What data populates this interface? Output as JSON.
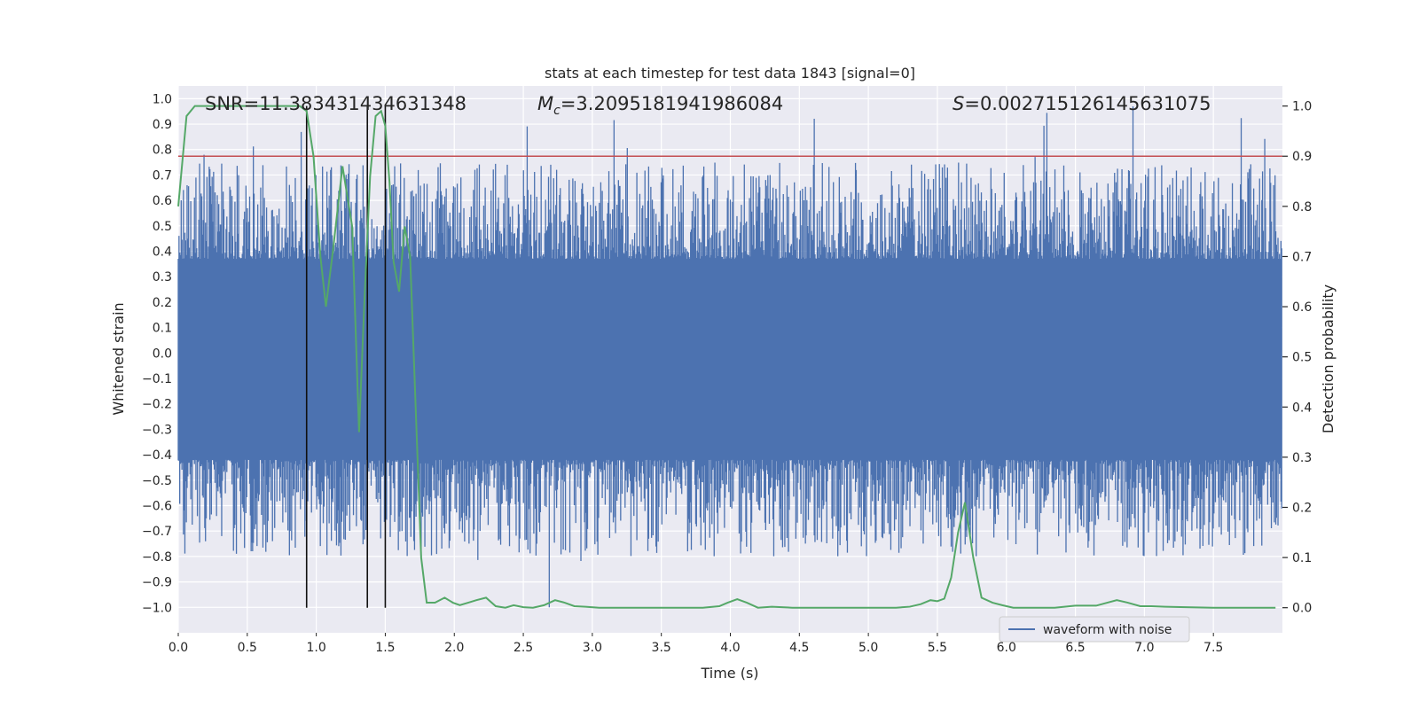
{
  "chart_data": {
    "type": "line",
    "title": "stats at each timestep for test data 1843 [signal=0]",
    "xlabel": "Time (s)",
    "ylabel_left": "Whitened strain",
    "ylabel_right": "Detection probability",
    "xlim": [
      0.0,
      8.0
    ],
    "ylim_left": [
      -1.1,
      1.05
    ],
    "ylim_right": [
      -0.05,
      1.04
    ],
    "x_ticks": [
      0.0,
      0.5,
      1.0,
      1.5,
      2.0,
      2.5,
      3.0,
      3.5,
      4.0,
      4.5,
      5.0,
      5.5,
      6.0,
      6.5,
      7.0,
      7.5
    ],
    "x_tick_labels": [
      "0.0",
      "0.5",
      "1.0",
      "1.5",
      "2.0",
      "2.5",
      "3.0",
      "3.5",
      "4.0",
      "4.5",
      "5.0",
      "5.5",
      "6.0",
      "6.5",
      "7.0",
      "7.5"
    ],
    "y_left_ticks": [
      1.0,
      0.9,
      0.8,
      0.7,
      0.6,
      0.5,
      0.4,
      0.3,
      0.2,
      0.1,
      0.0,
      -0.1,
      -0.2,
      -0.3,
      -0.4,
      -0.5,
      -0.6,
      -0.7,
      -0.8,
      -0.9,
      -1.0
    ],
    "y_left_tick_labels": [
      "1.0",
      "0.9",
      "0.8",
      "0.7",
      "0.6",
      "0.5",
      "0.4",
      "0.3",
      "0.2",
      "0.1",
      "0.0",
      "−0.1",
      "−0.2",
      "−0.3",
      "−0.4",
      "−0.5",
      "−0.6",
      "−0.7",
      "−0.8",
      "−0.9",
      "−1.0"
    ],
    "y_right_ticks": [
      1.0,
      0.9,
      0.8,
      0.7,
      0.6,
      0.5,
      0.4,
      0.3,
      0.2,
      0.1,
      0.0
    ],
    "y_right_tick_labels": [
      "1.0",
      "0.9",
      "0.8",
      "0.7",
      "0.6",
      "0.5",
      "0.4",
      "0.3",
      "0.2",
      "0.1",
      "0.0"
    ],
    "annotations": {
      "snr": "SNR=11.383431434631348",
      "mc_prefix": "M",
      "mc_sub": "c",
      "mc_value": "=3.2095181941986084",
      "s_prefix": "S",
      "s_value": "=0.002715126145631075"
    },
    "threshold_line": {
      "axis": "right",
      "value": 0.9,
      "color": "#c44e52"
    },
    "vertical_markers": [
      0.93,
      1.37,
      1.5
    ],
    "legend": {
      "label": "waveform with noise",
      "position": "lower right"
    },
    "series": [
      {
        "name": "waveform with noise",
        "axis": "left",
        "color": "#4c72b0",
        "kind": "noisy_strain",
        "band": [
          -0.42,
          0.37
        ],
        "extreme_range": [
          -1.0,
          0.97
        ]
      },
      {
        "name": "detection probability",
        "axis": "right",
        "color": "#55a868",
        "x": [
          0.0,
          0.06,
          0.12,
          0.2,
          0.3,
          0.45,
          0.6,
          0.75,
          0.88,
          0.93,
          0.98,
          1.03,
          1.07,
          1.12,
          1.19,
          1.26,
          1.31,
          1.35,
          1.39,
          1.43,
          1.47,
          1.5,
          1.53,
          1.56,
          1.6,
          1.64,
          1.68,
          1.72,
          1.76,
          1.8,
          1.86,
          1.93,
          1.99,
          2.04,
          2.1,
          2.16,
          2.23,
          2.3,
          2.37,
          2.43,
          2.5,
          2.57,
          2.65,
          2.73,
          2.8,
          2.87,
          2.95,
          3.05,
          3.2,
          3.5,
          3.8,
          3.92,
          3.98,
          4.05,
          4.12,
          4.2,
          4.3,
          4.45,
          4.6,
          4.8,
          5.0,
          5.2,
          5.3,
          5.38,
          5.45,
          5.5,
          5.55,
          5.6,
          5.65,
          5.7,
          5.76,
          5.82,
          5.9,
          5.97,
          6.05,
          6.2,
          6.35,
          6.5,
          6.65,
          6.8,
          6.88,
          6.97,
          7.05,
          7.15,
          7.3,
          7.5,
          7.7,
          7.8,
          7.95
        ],
        "values": [
          0.8,
          0.98,
          1.0,
          1.0,
          1.0,
          1.0,
          1.0,
          1.0,
          1.0,
          0.99,
          0.9,
          0.7,
          0.6,
          0.71,
          0.88,
          0.76,
          0.35,
          0.62,
          0.86,
          0.98,
          0.99,
          0.96,
          0.85,
          0.69,
          0.63,
          0.76,
          0.7,
          0.4,
          0.1,
          0.01,
          0.01,
          0.02,
          0.01,
          0.005,
          0.01,
          0.015,
          0.02,
          0.003,
          0.0,
          0.005,
          0.001,
          0.0,
          0.005,
          0.015,
          0.01,
          0.003,
          0.002,
          0.0,
          0.0,
          0.0,
          0.0,
          0.003,
          0.01,
          0.017,
          0.01,
          0.0,
          0.002,
          0.0,
          0.0,
          0.0,
          0.0,
          0.0,
          0.002,
          0.007,
          0.015,
          0.013,
          0.018,
          0.06,
          0.15,
          0.21,
          0.1,
          0.02,
          0.01,
          0.005,
          0.0,
          0.0,
          0.0,
          0.004,
          0.004,
          0.015,
          0.01,
          0.003,
          0.003,
          0.002,
          0.001,
          0.0,
          0.0,
          0.0,
          0.0
        ]
      }
    ]
  }
}
